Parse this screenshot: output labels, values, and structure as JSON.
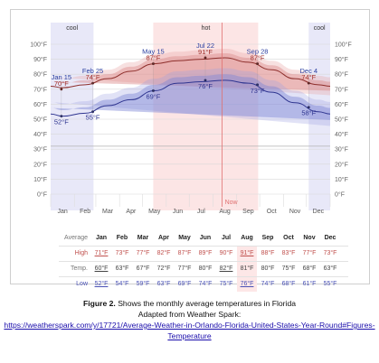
{
  "chart_data": {
    "type": "area",
    "months": [
      "Jan",
      "Feb",
      "Mar",
      "Apr",
      "May",
      "Jun",
      "Jul",
      "Aug",
      "Sep",
      "Oct",
      "Nov",
      "Dec"
    ],
    "ylim": [
      0,
      100
    ],
    "y_ticks": [
      "0°F",
      "10°F",
      "20°F",
      "30°F",
      "40°F",
      "50°F",
      "60°F",
      "70°F",
      "80°F",
      "90°F",
      "100°F"
    ],
    "grid": true,
    "series": [
      {
        "name": "High",
        "color": "#c0504d",
        "values": [
          71,
          73,
          77,
          82,
          87,
          89,
          90,
          91,
          88,
          83,
          77,
          73
        ]
      },
      {
        "name": "Low",
        "color": "#4a52b6",
        "values": [
          52,
          54,
          59,
          63,
          69,
          74,
          75,
          76,
          74,
          68,
          61,
          55
        ]
      }
    ],
    "seasons": [
      {
        "label": "cool",
        "from": "Jan 1",
        "to": "Feb 25"
      },
      {
        "label": "hot",
        "from": "May 15",
        "to": "Sep 28"
      },
      {
        "label": "cool",
        "from": "Dec 4",
        "to": "Dec 31"
      }
    ],
    "annotations": [
      {
        "date": "Jan 15",
        "value": "70°F",
        "series": "High"
      },
      {
        "date": "",
        "value": "52°F",
        "series": "Low"
      },
      {
        "date": "Feb 25",
        "value": "74°F",
        "series": "High"
      },
      {
        "date": "",
        "value": "55°F",
        "series": "Low"
      },
      {
        "date": "May 15",
        "value": "87°F",
        "series": "High"
      },
      {
        "date": "",
        "value": "69°F",
        "series": "Low"
      },
      {
        "date": "Jul 22",
        "value": "91°F",
        "series": "High"
      },
      {
        "date": "",
        "value": "76°F",
        "series": "Low"
      },
      {
        "date": "Sep 28",
        "value": "87°F",
        "series": "High"
      },
      {
        "date": "",
        "value": "73°F",
        "series": "Low"
      },
      {
        "date": "Dec 4",
        "value": "74°F",
        "series": "High"
      },
      {
        "date": "",
        "value": "58°F",
        "series": "Low"
      }
    ],
    "now_label": "Now",
    "now_month": "Aug"
  },
  "table": {
    "header_label": "Average",
    "months": [
      "Jan",
      "Feb",
      "Mar",
      "Apr",
      "May",
      "Jun",
      "Jul",
      "Aug",
      "Sep",
      "Oct",
      "Nov",
      "Dec"
    ],
    "rows": [
      {
        "label": "High",
        "values": [
          "71°F",
          "73°F",
          "77°F",
          "82°F",
          "87°F",
          "89°F",
          "90°F",
          "91°F",
          "88°F",
          "83°F",
          "77°F",
          "73°F"
        ]
      },
      {
        "label": "Temp.",
        "values": [
          "60°F",
          "63°F",
          "67°F",
          "72°F",
          "77°F",
          "80°F",
          "82°F",
          "81°F",
          "80°F",
          "75°F",
          "68°F",
          "63°F"
        ]
      },
      {
        "label": "Low",
        "values": [
          "52°F",
          "54°F",
          "59°F",
          "63°F",
          "69°F",
          "74°F",
          "75°F",
          "76°F",
          "74°F",
          "68°F",
          "61°F",
          "55°F"
        ]
      }
    ]
  },
  "caption": {
    "figure_label": "Figure 2.",
    "text": "Shows the monthly average temperatures in Florida",
    "adapted": "Adapted from Weather Spark:",
    "url": "https://weatherspark.com/y/17721/Average-Weather-in-Orlando-Florida-United-States-Year-Round#Figures-Temperature"
  }
}
